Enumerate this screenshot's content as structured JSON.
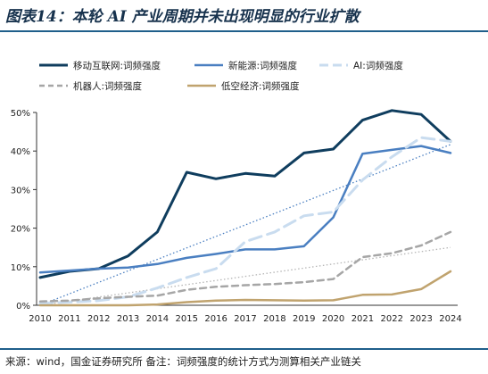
{
  "header": {
    "title": "图表14：本轮 AI 产业周期并未出现明显的行业扩散"
  },
  "footer": {
    "source": "来源：wind，国金证券研究所 备注：词频强度的统计方式为测算相关产业链关"
  },
  "chart_data": {
    "type": "line",
    "categories": [
      "2010",
      "2011",
      "2012",
      "2013",
      "2014",
      "2015",
      "2016",
      "2017",
      "2018",
      "2019",
      "2020",
      "2021",
      "2022",
      "2023",
      "2024"
    ],
    "ylim": [
      0,
      0.5
    ],
    "yticks": [
      0,
      0.1,
      0.2,
      0.3,
      0.4,
      0.5
    ],
    "ytick_labels": [
      "0%",
      "10%",
      "20%",
      "30%",
      "40%",
      "50%"
    ],
    "grid": false,
    "legend_position": "top",
    "series": [
      {
        "name": "移动互联网:词频强度",
        "color": "#0f3d5e",
        "dash": "solid",
        "width": 3,
        "values": [
          0.072,
          0.088,
          0.095,
          0.128,
          0.19,
          0.345,
          0.328,
          0.342,
          0.335,
          0.395,
          0.405,
          0.48,
          0.505,
          0.495,
          0.425
        ]
      },
      {
        "name": "新能源:词频强度",
        "color": "#4a7fc1",
        "dash": "solid",
        "width": 2.5,
        "values": [
          0.085,
          0.09,
          0.095,
          0.098,
          0.107,
          0.123,
          0.133,
          0.145,
          0.145,
          0.153,
          0.228,
          0.393,
          0.403,
          0.413,
          0.395
        ]
      },
      {
        "name": "AI:词频强度",
        "color": "#c9dcef",
        "dash": "long-dash",
        "width": 3,
        "values": [
          0.005,
          0.008,
          0.012,
          0.022,
          0.045,
          0.072,
          0.095,
          0.165,
          0.19,
          0.232,
          0.242,
          0.325,
          0.385,
          0.435,
          0.425
        ]
      },
      {
        "name": "机器人:词频强度",
        "color": "#a6a6a6",
        "dash": "dash",
        "width": 2.5,
        "values": [
          0.01,
          0.012,
          0.018,
          0.022,
          0.025,
          0.04,
          0.048,
          0.052,
          0.055,
          0.06,
          0.068,
          0.125,
          0.135,
          0.155,
          0.19
        ]
      },
      {
        "name": "低空经济:词频强度",
        "color": "#c0a36e",
        "dash": "solid",
        "width": 2.5,
        "values": [
          0,
          0,
          0,
          0,
          0.002,
          0.008,
          0.012,
          0.014,
          0.013,
          0.012,
          0.013,
          0.027,
          0.028,
          0.042,
          0.088
        ]
      }
    ]
  }
}
